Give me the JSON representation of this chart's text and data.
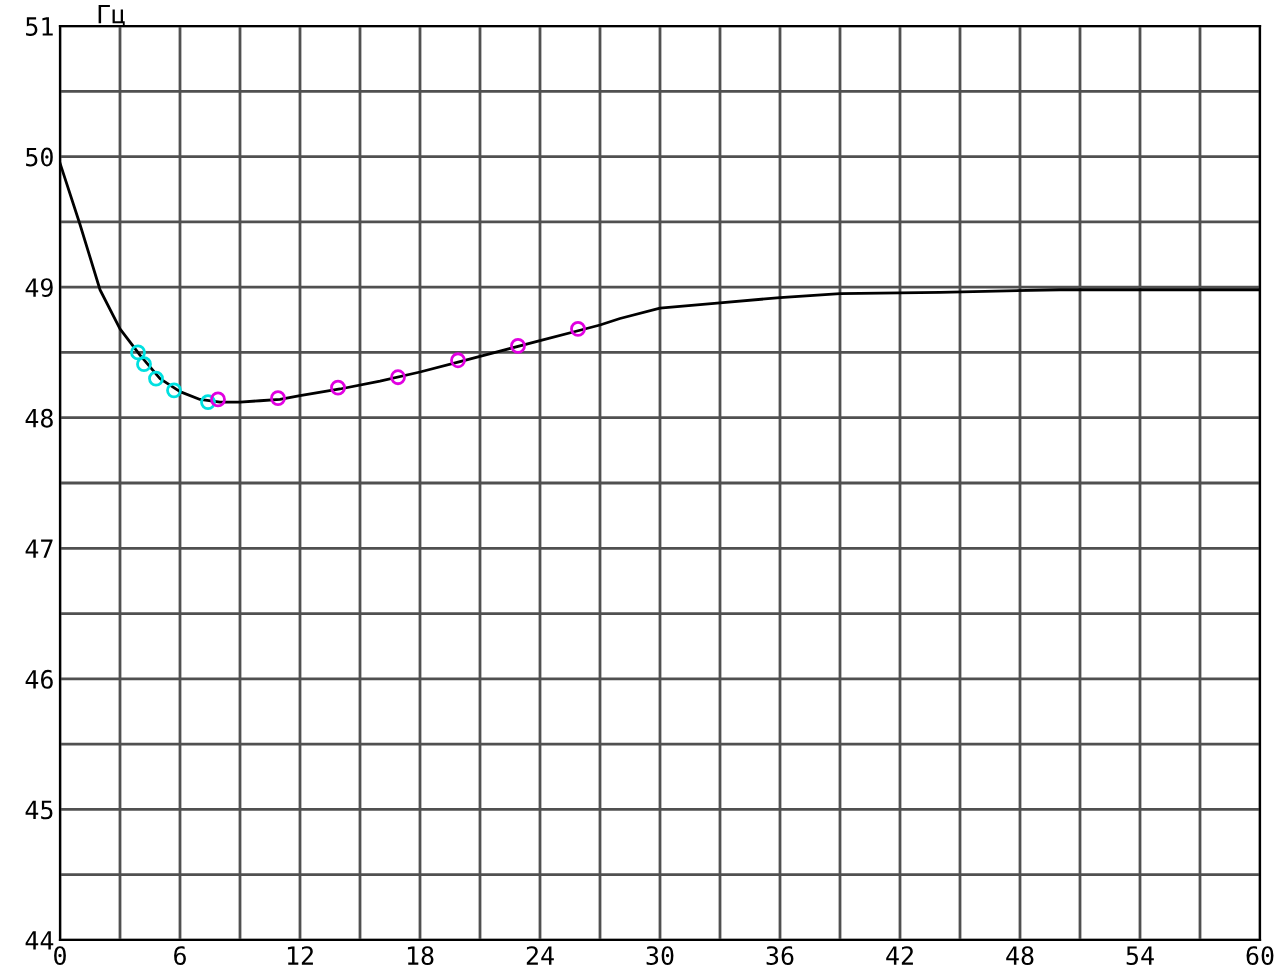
{
  "chart_data": {
    "type": "line",
    "ylabel": "Гц",
    "grid": true,
    "xlim": [
      0,
      60
    ],
    "ylim": [
      44,
      51
    ],
    "xticks": [
      0,
      {
        "value": 3,
        "label": null
      },
      6,
      {
        "value": 9,
        "label": null
      },
      12,
      {
        "value": 15,
        "label": null
      },
      18,
      {
        "value": 21,
        "label": null
      },
      24,
      {
        "value": 27,
        "label": null
      },
      30,
      {
        "value": 33,
        "label": null
      },
      36,
      {
        "value": 39,
        "label": null
      },
      42,
      {
        "value": 45,
        "label": null
      },
      48,
      {
        "value": 51,
        "label": null
      },
      54,
      {
        "value": 57,
        "label": null
      },
      60
    ],
    "yticks": [
      44,
      {
        "value": 44.5,
        "label": null
      },
      45,
      {
        "value": 45.5,
        "label": null
      },
      46,
      {
        "value": 46.5,
        "label": null
      },
      47,
      {
        "value": 47.5,
        "label": null
      },
      48,
      {
        "value": 48.5,
        "label": null
      },
      49,
      {
        "value": 49.5,
        "label": null
      },
      50,
      {
        "value": 50.5,
        "label": null
      },
      51
    ],
    "series": [
      {
        "color": "#000000",
        "marker": "none",
        "x": [
          0,
          1,
          2,
          3,
          4,
          5,
          6,
          7,
          8,
          9,
          10,
          11,
          12,
          14,
          16,
          18,
          20,
          22,
          24,
          26,
          27,
          28,
          30,
          33,
          36,
          39,
          44,
          50,
          60
        ],
        "values": [
          49.95,
          49.48,
          48.98,
          48.68,
          48.48,
          48.3,
          48.2,
          48.14,
          48.12,
          48.12,
          48.13,
          48.14,
          48.17,
          48.22,
          48.28,
          48.35,
          48.43,
          48.51,
          48.59,
          48.67,
          48.71,
          48.76,
          48.84,
          48.88,
          48.92,
          48.95,
          48.96,
          48.98,
          48.98
        ]
      },
      {
        "type": "scatter",
        "color": "#00e0e0",
        "marker": "circle",
        "x": [
          3.9,
          4.2,
          4.8,
          5.7,
          7.4
        ],
        "values": [
          48.5,
          48.41,
          48.3,
          48.21,
          48.12
        ]
      },
      {
        "type": "scatter",
        "color": "#e000e0",
        "marker": "circle",
        "x": [
          7.9,
          10.9,
          13.9,
          16.9,
          19.9,
          22.9,
          25.9
        ],
        "values": [
          48.14,
          48.15,
          48.23,
          48.31,
          48.44,
          48.55,
          48.68
        ]
      }
    ]
  }
}
